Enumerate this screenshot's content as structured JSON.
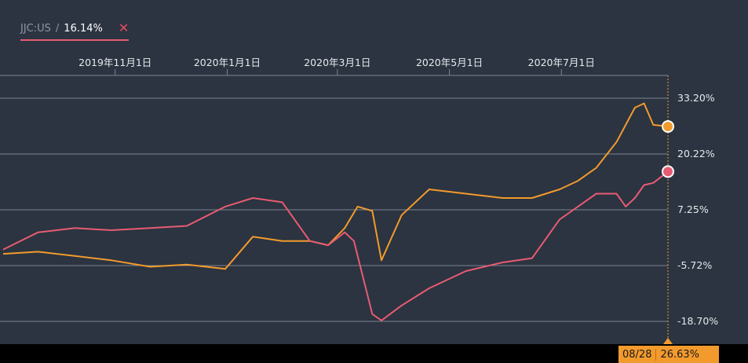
{
  "legend": {
    "ticker": "JJC:US",
    "separator": "/",
    "value": "16.14%",
    "remove_icon": "close-icon",
    "color": "#e85b72"
  },
  "badge": {
    "date": "08/28",
    "value": "26.63%",
    "color": "#f39a2d"
  },
  "colors": {
    "background": "#2b3440",
    "grid": "#7b8490",
    "axis_text": "#e6e9ee",
    "series_orange": "#f39a2d",
    "series_pink": "#e85b72"
  },
  "chart_data": {
    "type": "line",
    "x_tick_labels": [
      "2019年11月1日",
      "2020年1月1日",
      "2020年3月1日",
      "2020年5月1日",
      "2020年7月1日"
    ],
    "y_tick_labels": [
      "33.20%",
      "20.22%",
      "7.25%",
      "-5.72%",
      "-18.70%"
    ],
    "y_ticks": [
      33.2,
      20.22,
      7.25,
      -5.72,
      -18.7
    ],
    "x_range": [
      "2019-09-01",
      "2020-08-28"
    ],
    "ylim": [
      -18.7,
      33.2
    ],
    "grid": true,
    "series": [
      {
        "color": "#f39a2d",
        "dates": [
          "2019-09-01",
          "2019-09-20",
          "2019-10-10",
          "2019-10-30",
          "2019-11-20",
          "2019-12-10",
          "2019-12-31",
          "2020-01-15",
          "2020-01-31",
          "2020-02-15",
          "2020-02-25",
          "2020-03-05",
          "2020-03-12",
          "2020-03-20",
          "2020-03-25",
          "2020-04-05",
          "2020-04-20",
          "2020-05-10",
          "2020-05-30",
          "2020-06-15",
          "2020-06-30",
          "2020-07-10",
          "2020-07-20",
          "2020-07-31",
          "2020-08-05",
          "2020-08-10",
          "2020-08-15",
          "2020-08-20",
          "2020-08-28"
        ],
        "values": [
          -3,
          -2.5,
          -3.5,
          -4.5,
          -6,
          -5.5,
          -6.5,
          1,
          0,
          0,
          -1,
          3,
          8,
          7,
          -4.5,
          6,
          12,
          11,
          10,
          10,
          12,
          14,
          17,
          23,
          27,
          31,
          32,
          27,
          26.63
        ]
      },
      {
        "color": "#e85b72",
        "dates": [
          "2019-09-01",
          "2019-09-20",
          "2019-10-10",
          "2019-10-30",
          "2019-11-20",
          "2019-12-10",
          "2019-12-31",
          "2020-01-15",
          "2020-01-31",
          "2020-02-15",
          "2020-02-25",
          "2020-03-05",
          "2020-03-10",
          "2020-03-20",
          "2020-03-25",
          "2020-04-05",
          "2020-04-20",
          "2020-05-10",
          "2020-05-30",
          "2020-06-15",
          "2020-06-30",
          "2020-07-10",
          "2020-07-20",
          "2020-07-31",
          "2020-08-05",
          "2020-08-10",
          "2020-08-15",
          "2020-08-20",
          "2020-08-28"
        ],
        "values": [
          -2,
          2,
          3,
          2.5,
          3,
          3.5,
          8,
          10,
          9,
          0,
          -1,
          2,
          0,
          -17,
          -18.5,
          -15,
          -11,
          -7,
          -5,
          -4,
          5,
          8,
          11,
          11,
          8,
          10,
          13,
          13.5,
          16.14
        ]
      }
    ]
  }
}
